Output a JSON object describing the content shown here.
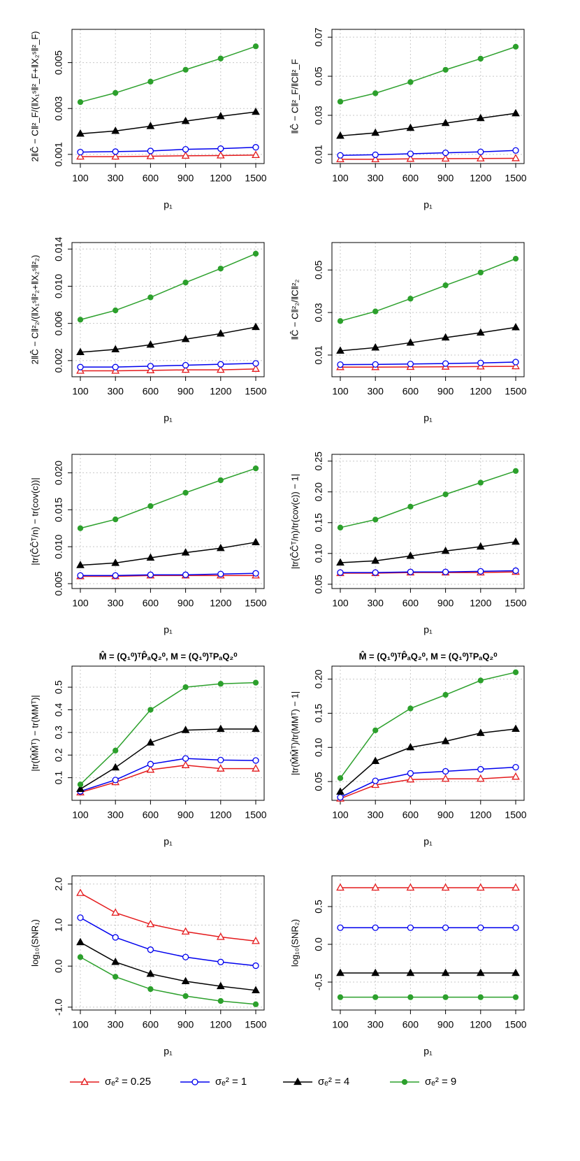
{
  "chart_data": [
    {
      "type": "line",
      "y_label": "2‖Ĉ − C‖²_F/(‖X₁ˢ‖²_F+‖X₂ˢ‖²_F)",
      "x_label": "p₁",
      "categories": [
        "100",
        "300",
        "600",
        "900",
        "1200",
        "1500"
      ],
      "ylim": [
        0.0006,
        0.00645
      ],
      "yticks": [
        0.001,
        0.003,
        0.005
      ],
      "grid": true,
      "series": [
        {
          "color": "#e41a1c",
          "marker": "open-triangle",
          "values": [
            0.0009,
            0.0009,
            0.00092,
            0.00094,
            0.00095,
            0.00097
          ]
        },
        {
          "color": "#0000ee",
          "marker": "open-circle",
          "values": [
            0.0011,
            0.00112,
            0.00115,
            0.00122,
            0.00125,
            0.00131
          ]
        },
        {
          "color": "#000000",
          "marker": "filled-triangle",
          "values": [
            0.0019,
            0.00202,
            0.00223,
            0.00245,
            0.00266,
            0.00285
          ]
        },
        {
          "color": "#2ca02c",
          "marker": "filled-circle",
          "values": [
            0.00328,
            0.00368,
            0.00417,
            0.00469,
            0.00518,
            0.00571
          ]
        }
      ]
    },
    {
      "type": "line",
      "y_label": "‖Ĉ − C‖²_F/‖C‖²_F",
      "x_label": "p₁",
      "categories": [
        "100",
        "300",
        "600",
        "900",
        "1200",
        "1500"
      ],
      "ylim": [
        0.0053,
        0.074
      ],
      "yticks": [
        0.01,
        0.03,
        0.05,
        0.07
      ],
      "grid": true,
      "series": [
        {
          "color": "#e41a1c",
          "marker": "open-triangle",
          "values": [
            0.0075,
            0.0075,
            0.0077,
            0.0078,
            0.0079,
            0.008
          ]
        },
        {
          "color": "#0000ee",
          "marker": "open-circle",
          "values": [
            0.0095,
            0.0098,
            0.0103,
            0.0108,
            0.0113,
            0.012
          ]
        },
        {
          "color": "#000000",
          "marker": "filled-triangle",
          "values": [
            0.0195,
            0.021,
            0.0235,
            0.026,
            0.0285,
            0.031
          ]
        },
        {
          "color": "#2ca02c",
          "marker": "filled-circle",
          "values": [
            0.037,
            0.0413,
            0.047,
            0.0533,
            0.059,
            0.0651
          ]
        }
      ]
    },
    {
      "type": "line",
      "y_label": "2‖Ĉ − C‖²₂/(‖X₁ˢ‖²₂+‖X₂ˢ‖²₂)",
      "x_label": "p₁",
      "categories": [
        "100",
        "300",
        "600",
        "900",
        "1200",
        "1500"
      ],
      "ylim": [
        0.00026,
        0.0147
      ],
      "yticks": [
        0.002,
        0.006,
        {
          "value": 0.01,
          "label": "0.010"
        },
        0.014
      ],
      "grid": true,
      "series": [
        {
          "color": "#e41a1c",
          "marker": "open-triangle",
          "values": [
            0.0009,
            0.0009,
            0.00095,
            0.001,
            0.001,
            0.0011
          ]
        },
        {
          "color": "#0000ee",
          "marker": "open-circle",
          "values": [
            0.0013,
            0.0013,
            0.0014,
            0.0015,
            0.0016,
            0.0017
          ]
        },
        {
          "color": "#000000",
          "marker": "filled-triangle",
          "values": [
            0.0029,
            0.0032,
            0.0037,
            0.0043,
            0.0049,
            0.0056
          ]
        },
        {
          "color": "#2ca02c",
          "marker": "filled-circle",
          "values": [
            0.0064,
            0.0074,
            0.0088,
            0.0104,
            0.0119,
            0.0135
          ]
        }
      ]
    },
    {
      "type": "line",
      "y_label": "‖Ĉ − C‖²₂/‖C‖²₂",
      "x_label": "p₁",
      "categories": [
        "100",
        "300",
        "600",
        "900",
        "1200",
        "1500"
      ],
      "ylim": [
        -0.0002,
        0.0629
      ],
      "yticks": [
        0.01,
        0.03,
        0.05
      ],
      "grid": true,
      "series": [
        {
          "color": "#e41a1c",
          "marker": "open-triangle",
          "values": [
            0.0043,
            0.0043,
            0.0044,
            0.0045,
            0.0046,
            0.0047
          ]
        },
        {
          "color": "#0000ee",
          "marker": "open-circle",
          "values": [
            0.0055,
            0.0056,
            0.0058,
            0.006,
            0.0063,
            0.0067
          ]
        },
        {
          "color": "#000000",
          "marker": "filled-triangle",
          "values": [
            0.012,
            0.0135,
            0.0158,
            0.0182,
            0.0205,
            0.023
          ]
        },
        {
          "color": "#2ca02c",
          "marker": "filled-circle",
          "values": [
            0.026,
            0.0305,
            0.0365,
            0.0428,
            0.0488,
            0.0553
          ]
        }
      ]
    },
    {
      "type": "line",
      "y_label": "|tr(ĈĈᵀ/n) − tr(cov(c))|",
      "x_label": "p₁",
      "categories": [
        "100",
        "300",
        "600",
        "900",
        "1200",
        "1500"
      ],
      "ylim": [
        0.00434,
        0.0225
      ],
      "yticks": [
        0.005,
        {
          "value": 0.01,
          "label": "0.010"
        },
        0.015,
        {
          "value": 0.02,
          "label": "0.020"
        }
      ],
      "grid": true,
      "series": [
        {
          "color": "#e41a1c",
          "marker": "open-triangle",
          "values": [
            0.006,
            0.006,
            0.0061,
            0.0061,
            0.0061,
            0.0061
          ]
        },
        {
          "color": "#0000ee",
          "marker": "open-circle",
          "values": [
            0.0061,
            0.0061,
            0.0062,
            0.0062,
            0.0063,
            0.0064
          ]
        },
        {
          "color": "#000000",
          "marker": "filled-triangle",
          "values": [
            0.0075,
            0.0078,
            0.0085,
            0.0092,
            0.0098,
            0.0106
          ]
        },
        {
          "color": "#2ca02c",
          "marker": "filled-circle",
          "values": [
            0.0125,
            0.0137,
            0.0155,
            0.0173,
            0.019,
            0.0206
          ]
        }
      ]
    },
    {
      "type": "line",
      "y_label": "|tr(ĈĈᵀ/n)/tr(cov(c)) − 1|",
      "x_label": "p₁",
      "categories": [
        "100",
        "300",
        "600",
        "900",
        "1200",
        "1500"
      ],
      "ylim": [
        0.043,
        0.261
      ],
      "yticks": [
        0.05,
        {
          "value": 0.1,
          "label": "0.10"
        },
        0.15,
        {
          "value": 0.2,
          "label": "0.20"
        },
        0.25
      ],
      "grid": true,
      "series": [
        {
          "color": "#e41a1c",
          "marker": "open-triangle",
          "values": [
            0.068,
            0.068,
            0.069,
            0.069,
            0.069,
            0.07
          ]
        },
        {
          "color": "#0000ee",
          "marker": "open-circle",
          "values": [
            0.069,
            0.069,
            0.07,
            0.07,
            0.071,
            0.072
          ]
        },
        {
          "color": "#000000",
          "marker": "filled-triangle",
          "values": [
            0.085,
            0.088,
            0.096,
            0.104,
            0.111,
            0.119
          ]
        },
        {
          "color": "#2ca02c",
          "marker": "filled-circle",
          "values": [
            0.142,
            0.155,
            0.176,
            0.196,
            0.215,
            0.234
          ]
        }
      ]
    },
    {
      "type": "line",
      "title": "M̂ = (Q₁⁰)ᵀP̂ₐQ₂⁰,  M = (Q₁⁰)ᵀPₐQ₂⁰",
      "y_label": "|tr(M̂M̂ᵀ) − tr(MMᵀ)|",
      "x_label": "p₁",
      "categories": [
        "100",
        "300",
        "600",
        "900",
        "1200",
        "1500"
      ],
      "ylim": [
        0.0,
        0.593
      ],
      "yticks": [
        0.1,
        0.2,
        0.3,
        0.4,
        0.5
      ],
      "grid": true,
      "series": [
        {
          "color": "#e41a1c",
          "marker": "open-triangle",
          "values": [
            0.035,
            0.08,
            0.135,
            0.155,
            0.14,
            0.14
          ]
        },
        {
          "color": "#0000ee",
          "marker": "open-circle",
          "values": [
            0.04,
            0.09,
            0.16,
            0.185,
            0.178,
            0.176
          ]
        },
        {
          "color": "#000000",
          "marker": "filled-triangle",
          "values": [
            0.05,
            0.145,
            0.255,
            0.31,
            0.315,
            0.315
          ]
        },
        {
          "color": "#2ca02c",
          "marker": "filled-circle",
          "values": [
            0.07,
            0.22,
            0.4,
            0.5,
            0.515,
            0.52
          ]
        }
      ]
    },
    {
      "type": "line",
      "title": "M̂ = (Q₁⁰)ᵀP̂ₐQ₂⁰,  M = (Q₁⁰)ᵀPₐQ₂⁰",
      "y_label": "|tr(M̂M̂ᵀ)/tr(MMᵀ) − 1|",
      "x_label": "p₁",
      "categories": [
        "100",
        "300",
        "600",
        "900",
        "1200",
        "1500"
      ],
      "ylim": [
        0.0225,
        0.219
      ],
      "yticks": [
        0.05,
        {
          "value": 0.1,
          "label": "0.10"
        },
        0.15,
        {
          "value": 0.2,
          "label": "0.20"
        }
      ],
      "grid": true,
      "series": [
        {
          "color": "#e41a1c",
          "marker": "open-triangle",
          "values": [
            0.025,
            0.045,
            0.053,
            0.054,
            0.054,
            0.057
          ]
        },
        {
          "color": "#0000ee",
          "marker": "open-circle",
          "values": [
            0.027,
            0.051,
            0.062,
            0.065,
            0.068,
            0.071
          ]
        },
        {
          "color": "#000000",
          "marker": "filled-triangle",
          "values": [
            0.035,
            0.08,
            0.1,
            0.109,
            0.121,
            0.127
          ]
        },
        {
          "color": "#2ca02c",
          "marker": "filled-circle",
          "values": [
            0.055,
            0.125,
            0.157,
            0.177,
            0.198,
            0.21
          ]
        }
      ]
    },
    {
      "type": "line",
      "y_label": "log₁₀(SNR₁)",
      "x_label": "p₁",
      "categories": [
        "100",
        "300",
        "600",
        "900",
        "1200",
        "1500"
      ],
      "ylim": [
        -1.07,
        2.2
      ],
      "yticks": [
        {
          "value": -1,
          "label": "-1.0"
        },
        {
          "value": 0,
          "label": "0.0"
        },
        {
          "value": 1,
          "label": "1.0"
        },
        {
          "value": 2,
          "label": "2.0"
        }
      ],
      "grid": true,
      "series": [
        {
          "color": "#e41a1c",
          "marker": "open-triangle",
          "values": [
            1.78,
            1.3,
            1.02,
            0.84,
            0.71,
            0.61
          ]
        },
        {
          "color": "#0000ee",
          "marker": "open-circle",
          "values": [
            1.18,
            0.7,
            0.4,
            0.22,
            0.1,
            0.01
          ]
        },
        {
          "color": "#000000",
          "marker": "filled-triangle",
          "values": [
            0.58,
            0.1,
            -0.19,
            -0.37,
            -0.49,
            -0.59
          ]
        },
        {
          "color": "#2ca02c",
          "marker": "filled-circle",
          "values": [
            0.22,
            -0.26,
            -0.56,
            -0.73,
            -0.85,
            -0.93
          ]
        }
      ]
    },
    {
      "type": "line",
      "y_label": "log₁₀(SNR₂)",
      "x_label": "p₁",
      "categories": [
        "100",
        "300",
        "600",
        "900",
        "1200",
        "1500"
      ],
      "ylim": [
        -0.87,
        0.907
      ],
      "yticks": [
        -0.5,
        {
          "value": 0,
          "label": "0.0"
        },
        0.5
      ],
      "grid": true,
      "series": [
        {
          "color": "#e41a1c",
          "marker": "open-triangle",
          "values": [
            0.75,
            0.75,
            0.75,
            0.75,
            0.75,
            0.75
          ]
        },
        {
          "color": "#0000ee",
          "marker": "open-circle",
          "values": [
            0.22,
            0.22,
            0.22,
            0.22,
            0.22,
            0.22
          ]
        },
        {
          "color": "#000000",
          "marker": "filled-triangle",
          "values": [
            -0.38,
            -0.38,
            -0.38,
            -0.38,
            -0.38,
            -0.38
          ]
        },
        {
          "color": "#2ca02c",
          "marker": "filled-circle",
          "values": [
            -0.7,
            -0.7,
            -0.7,
            -0.7,
            -0.7,
            -0.7
          ]
        }
      ]
    }
  ],
  "legend": {
    "entries": [
      {
        "label": "σₑ² = 0.25",
        "color": "#e41a1c",
        "marker": "open-triangle"
      },
      {
        "label": "σₑ² = 1",
        "color": "#0000ee",
        "marker": "open-circle"
      },
      {
        "label": "σₑ² = 4",
        "color": "#000000",
        "marker": "filled-triangle"
      },
      {
        "label": "σₑ² = 9",
        "color": "#2ca02c",
        "marker": "filled-circle"
      }
    ]
  }
}
